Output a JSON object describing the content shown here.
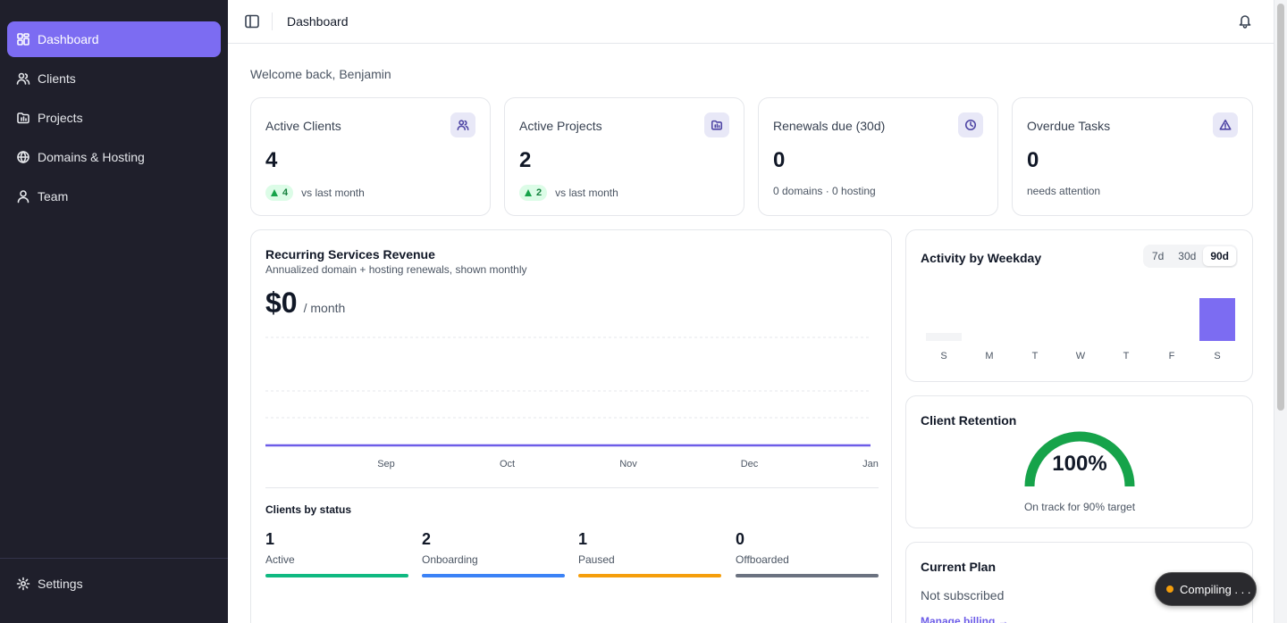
{
  "sidebar": {
    "items": [
      {
        "label": "Dashboard",
        "icon": "dashboard-icon",
        "active": true
      },
      {
        "label": "Clients",
        "icon": "users-icon"
      },
      {
        "label": "Projects",
        "icon": "folder-icon"
      },
      {
        "label": "Domains & Hosting",
        "icon": "globe-icon"
      },
      {
        "label": "Team",
        "icon": "user-icon"
      }
    ],
    "settings_label": "Settings"
  },
  "header": {
    "title": "Dashboard"
  },
  "welcome": "Welcome back, Benjamin",
  "stats": [
    {
      "label": "Active Clients",
      "value": "4",
      "delta": "4",
      "sub": "vs last month",
      "icon": "users-icon"
    },
    {
      "label": "Active Projects",
      "value": "2",
      "delta": "2",
      "sub": "vs last month",
      "icon": "folder-icon"
    },
    {
      "label": "Renewals due (30d)",
      "value": "0",
      "sub": "0 domains · 0 hosting",
      "icon": "clock-icon"
    },
    {
      "label": "Overdue Tasks",
      "value": "0",
      "sub": "needs attention",
      "icon": "alert-icon"
    }
  ],
  "revenue": {
    "title": "Recurring Services Revenue",
    "subtitle": "Annualized domain + hosting renewals, shown monthly",
    "amount": "$0",
    "per": "/ month"
  },
  "clients_by_status": {
    "title": "Clients by status",
    "items": [
      {
        "count": "1",
        "label": "Active",
        "color": "#10b981"
      },
      {
        "count": "2",
        "label": "Onboarding",
        "color": "#3b82f6"
      },
      {
        "count": "1",
        "label": "Paused",
        "color": "#f59e0b"
      },
      {
        "count": "0",
        "label": "Offboarded",
        "color": "#6b7280"
      }
    ]
  },
  "activity": {
    "title": "Activity by Weekday",
    "ranges": [
      "7d",
      "30d",
      "90d"
    ],
    "selected_range": "90d"
  },
  "retention": {
    "title": "Client Retention",
    "value": "100%",
    "caption": "On track for 90% target",
    "percent": 100
  },
  "plan": {
    "title": "Current Plan",
    "status": "Not subscribed",
    "link": "Manage billing →"
  },
  "toast": {
    "label": "Compiling . . ."
  },
  "colors": {
    "accent": "#7c6cf2",
    "sidebar_bg": "#1f1f2b"
  },
  "chart_data": [
    {
      "type": "line",
      "title": "Recurring Services Revenue",
      "x": [
        "Sep",
        "Oct",
        "Nov",
        "Dec",
        "Jan"
      ],
      "series": [
        {
          "values": [
            0,
            0,
            0,
            0,
            0
          ]
        }
      ],
      "color": "#6d5de8"
    },
    {
      "type": "bar",
      "title": "Activity by Weekday",
      "categories": [
        "S",
        "M",
        "T",
        "W",
        "T",
        "F",
        "S"
      ],
      "values": [
        0,
        0,
        0,
        0,
        0,
        0,
        1
      ],
      "color": "#7c6cf2"
    }
  ]
}
